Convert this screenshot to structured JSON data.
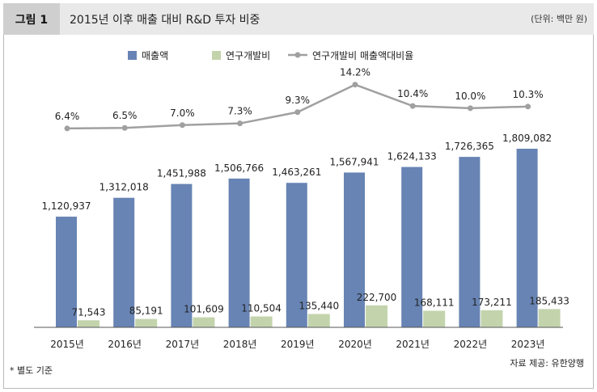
{
  "figure": {
    "label": "그림 1",
    "title": "2015년 이후 매출 대비 R&D 투자 비중",
    "unit": "(단위: 백만 원)",
    "footnote": "* 별도 기준",
    "source": "자료 제공: 유한양행"
  },
  "chart_data": {
    "type": "bar",
    "categories": [
      "2015년",
      "2016년",
      "2017년",
      "2018년",
      "2019년",
      "2020년",
      "2021년",
      "2022년",
      "2023년"
    ],
    "series": [
      {
        "name": "매출액",
        "kind": "bar",
        "color": "#6784b4",
        "values": [
          1120937,
          1312018,
          1451988,
          1506766,
          1463261,
          1567941,
          1624133,
          1726365,
          1809082
        ],
        "labels": [
          "1,120,937",
          "1,312,018",
          "1,451,988",
          "1,506,766",
          "1,463,261",
          "1,567,941",
          "1,624,133",
          "1,726,365",
          "1,809,082"
        ]
      },
      {
        "name": "연구개발비",
        "kind": "bar",
        "color": "#c3d4ad",
        "values": [
          71543,
          85191,
          101609,
          110504,
          135440,
          222700,
          168111,
          173211,
          185433
        ],
        "labels": [
          "71,543",
          "85,191",
          "101,609",
          "110,504",
          "135,440",
          "222,700",
          "168,111",
          "173,211",
          "185,433"
        ]
      },
      {
        "name": "연구개발비 매출액대비율",
        "kind": "line",
        "color": "#a0a0a0",
        "values": [
          6.4,
          6.5,
          7.0,
          7.3,
          9.3,
          14.2,
          10.4,
          10.0,
          10.3
        ],
        "labels": [
          "6.4%",
          "6.5%",
          "7.0%",
          "7.3%",
          "9.3%",
          "14.2%",
          "10.4%",
          "10.0%",
          "10.3%"
        ]
      }
    ],
    "ylim_bars": [
      0,
      2000000
    ],
    "ylim_line": [
      0,
      16
    ],
    "grid": false,
    "legend": "top-center"
  }
}
